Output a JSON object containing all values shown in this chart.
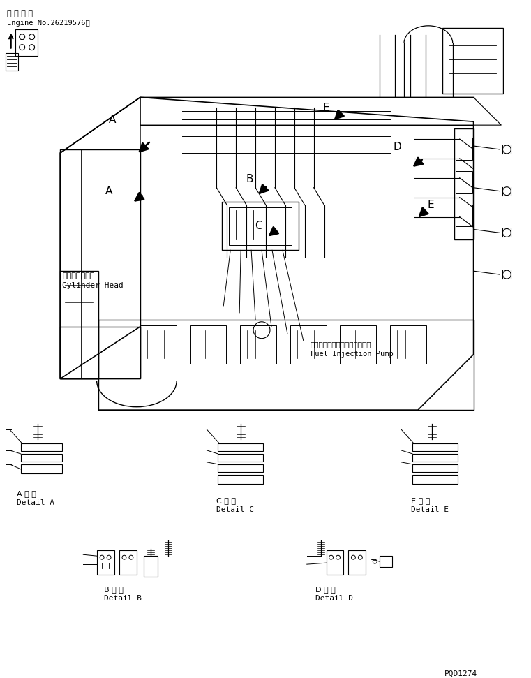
{
  "title": "",
  "bg_color": "#ffffff",
  "line_color": "#000000",
  "text_color": "#000000",
  "top_left_text1": "適 用 号 機",
  "top_left_text2": "Engine No.26219576～",
  "label_cylinder": "シリンダヘッド",
  "label_cylinder_en": "Cylinder Head",
  "label_pump_jp": "フェルインジュクションポンプ",
  "label_pump_en": "Fuel Injection Pump",
  "detail_A_jp": "A 詳 細",
  "detail_A_en": "Detail A",
  "detail_B_jp": "B 詳 細",
  "detail_B_en": "Detail B",
  "detail_C_jp": "C 詳 細",
  "detail_C_en": "Detail C",
  "detail_D_jp": "D 詳 細",
  "detail_D_en": "Detail D",
  "detail_E_jp": "E 詳 細",
  "detail_E_en": "Detail E",
  "part_number": "PQD1274",
  "figsize": [
    7.61,
    9.71
  ],
  "dpi": 100
}
